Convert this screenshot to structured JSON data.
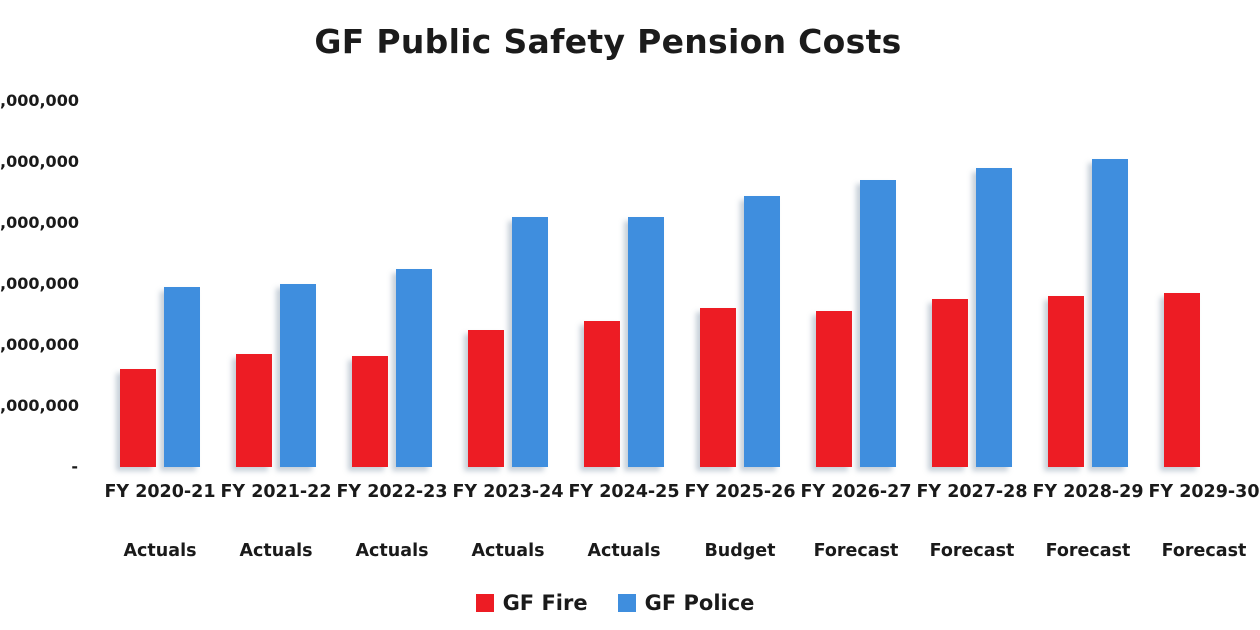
{
  "chart_data": {
    "type": "bar",
    "title": "GF Public Safety Pension Costs",
    "xlabel": "",
    "ylabel": "",
    "categories": [
      "FY 2020-21",
      "FY 2021-22",
      "FY 2022-23",
      "FY 2023-24",
      "FY 2024-25",
      "FY 2025-26",
      "FY 2026-27",
      "FY 2027-28",
      "FY 2028-29",
      "FY 2029-30"
    ],
    "category_sublabels": [
      "Actuals",
      "Actuals",
      "Actuals",
      "Actuals",
      "Actuals",
      "Budget",
      "Forecast",
      "Forecast",
      "Forecast",
      "Forecast"
    ],
    "series": [
      {
        "name": "GF Fire",
        "color": "#ED1C24",
        "values": [
          1600000,
          1850000,
          1820000,
          2250000,
          2400000,
          2600000,
          2550000,
          2750000,
          2800000,
          2850000
        ]
      },
      {
        "name": "GF Police",
        "color": "#3F8EDE",
        "values": [
          2950000,
          3000000,
          3250000,
          4100000,
          4100000,
          4450000,
          4700000,
          4900000,
          5050000,
          null
        ]
      }
    ],
    "ylim": [
      0,
      6500000
    ],
    "y_ticks": [
      {
        "value": 0,
        "label": "-"
      },
      {
        "value": 1000000,
        "label": ",000,000"
      },
      {
        "value": 2000000,
        "label": ",000,000"
      },
      {
        "value": 3000000,
        "label": ",000,000"
      },
      {
        "value": 4000000,
        "label": ",000,000"
      },
      {
        "value": 5000000,
        "label": ",000,000"
      },
      {
        "value": 6000000,
        "label": ",000,000"
      }
    ],
    "grid": false,
    "legend_position": "bottom"
  }
}
